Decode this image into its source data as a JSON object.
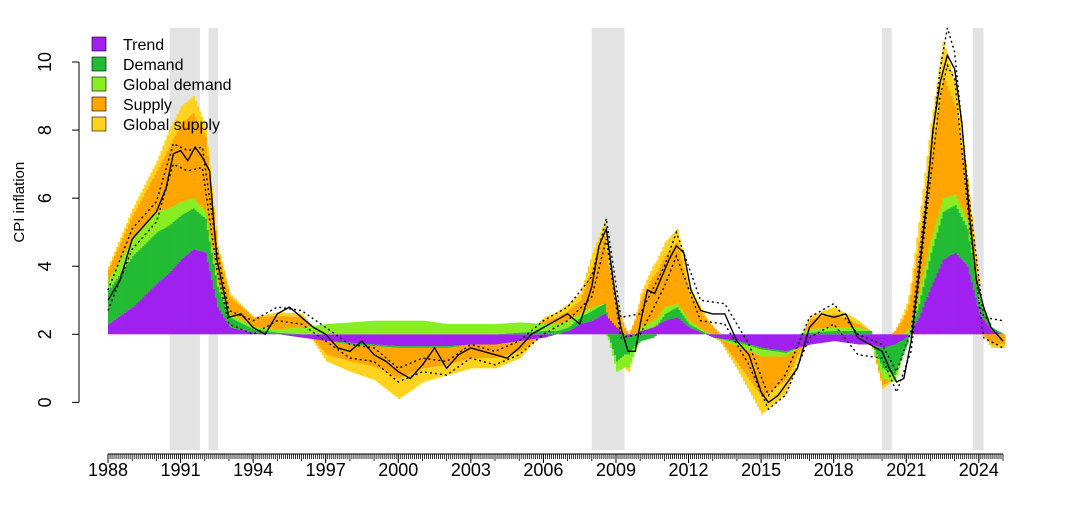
{
  "chart_data": {
    "type": "area",
    "ylabel": "CPI inflation",
    "xlim": [
      1988.0,
      2025.0
    ],
    "ylim": [
      -1.4,
      11.0
    ],
    "baseline": 2,
    "grid": false,
    "legend_position": "top-left",
    "x_ticks": [
      1988,
      1991,
      1994,
      1997,
      2000,
      2003,
      2006,
      2009,
      2012,
      2015,
      2018,
      2021,
      2024
    ],
    "x_tick_labels": [
      "1988",
      "1991",
      "1994",
      "1997",
      "2000",
      "2003",
      "2006",
      "2009",
      "2012",
      "2015",
      "2018",
      "2021",
      "2024"
    ],
    "y_ticks": [
      0,
      2,
      4,
      6,
      8,
      10
    ],
    "y_tick_labels": [
      "0",
      "2",
      "4",
      "6",
      "8",
      "10"
    ],
    "recessions": [
      [
        1990.55,
        1991.8
      ],
      [
        1992.15,
        1992.55
      ],
      [
        2008.0,
        2009.35
      ],
      [
        2020.0,
        2020.4
      ],
      [
        2023.75,
        2024.2
      ]
    ],
    "series": [
      {
        "name": "Trend",
        "color": "#a020f0"
      },
      {
        "name": "Demand",
        "color": "#22bb33"
      },
      {
        "name": "Global demand",
        "color": "#88ee22"
      },
      {
        "name": "Supply",
        "color": "#ffa500"
      },
      {
        "name": "Global supply",
        "color": "#ffd21e"
      }
    ],
    "x": [
      1988.0,
      1989.0,
      1990.0,
      1990.5,
      1991.0,
      1991.5,
      1992.0,
      1992.5,
      1993.0,
      1994.0,
      1995.0,
      1996.0,
      1997.0,
      1998.0,
      1999.0,
      2000.0,
      2001.0,
      2002.0,
      2003.0,
      2004.0,
      2005.0,
      2006.0,
      2007.0,
      2007.5,
      2008.0,
      2008.5,
      2009.0,
      2009.5,
      2010.0,
      2010.5,
      2011.0,
      2011.5,
      2012.0,
      2013.0,
      2014.0,
      2015.0,
      2016.0,
      2017.0,
      2018.0,
      2019.0,
      2019.5,
      2020.0,
      2020.5,
      2021.0,
      2021.5,
      2022.0,
      2022.5,
      2023.0,
      2023.5,
      2024.0,
      2024.5,
      2025.0
    ],
    "components": {
      "Trend": [
        0.3,
        0.8,
        1.5,
        1.8,
        2.2,
        2.5,
        2.4,
        0.8,
        0.2,
        0.05,
        0.0,
        -0.1,
        -0.2,
        -0.25,
        -0.3,
        -0.35,
        -0.35,
        -0.35,
        -0.3,
        -0.3,
        -0.2,
        -0.1,
        0.1,
        0.3,
        0.4,
        0.6,
        0.2,
        -0.1,
        0.1,
        0.2,
        0.4,
        0.5,
        0.2,
        -0.1,
        -0.2,
        -0.4,
        -0.5,
        -0.3,
        -0.2,
        -0.3,
        -0.3,
        -0.4,
        -0.3,
        -0.1,
        0.5,
        1.4,
        2.2,
        2.4,
        2.0,
        0.6,
        0.1,
        0.0
      ],
      "Demand": [
        1.0,
        1.5,
        1.5,
        1.4,
        1.3,
        1.2,
        1.0,
        0.6,
        0.3,
        0.1,
        0.05,
        0.0,
        0.0,
        -0.05,
        -0.05,
        -0.05,
        -0.05,
        -0.05,
        0.0,
        0.0,
        0.05,
        0.1,
        0.1,
        0.2,
        0.3,
        0.3,
        -0.8,
        -0.5,
        -0.2,
        -0.1,
        0.2,
        0.3,
        0.1,
        0.0,
        -0.05,
        -0.05,
        -0.05,
        0.05,
        0.1,
        0.1,
        0.1,
        -0.6,
        -0.9,
        -0.2,
        0.4,
        1.0,
        1.4,
        1.4,
        1.1,
        0.4,
        0.1,
        0.0
      ],
      "Global demand": [
        0.3,
        0.5,
        0.6,
        0.5,
        0.4,
        0.3,
        0.2,
        0.1,
        0.1,
        0.05,
        0.1,
        0.2,
        0.3,
        0.35,
        0.4,
        0.4,
        0.4,
        0.3,
        0.3,
        0.3,
        0.3,
        0.2,
        0.2,
        0.1,
        0.1,
        0.0,
        -0.3,
        -0.4,
        0.1,
        0.2,
        0.2,
        0.1,
        0.1,
        0.0,
        -0.1,
        -0.2,
        -0.1,
        0.1,
        0.1,
        0.1,
        0.0,
        -0.3,
        -0.2,
        0.1,
        0.3,
        0.4,
        0.4,
        0.3,
        0.2,
        0.1,
        0.0,
        0.0
      ],
      "Supply": [
        0.3,
        0.7,
        1.2,
        1.8,
        2.3,
        2.5,
        2.2,
        1.0,
        0.5,
        0.3,
        0.4,
        0.3,
        -0.4,
        -0.5,
        -0.6,
        -0.9,
        -0.6,
        -0.5,
        -0.4,
        -0.4,
        -0.3,
        0.1,
        0.3,
        0.4,
        1.2,
        2.0,
        0.6,
        0.0,
        0.8,
        1.3,
        1.5,
        1.8,
        0.8,
        0.2,
        -0.5,
        -1.2,
        -0.7,
        0.3,
        0.4,
        0.1,
        0.0,
        -0.2,
        0.1,
        0.6,
        1.5,
        2.5,
        3.6,
        2.6,
        1.0,
        0.1,
        -0.3,
        -0.3
      ],
      "Global supply": [
        0.1,
        0.2,
        0.3,
        0.5,
        0.5,
        0.5,
        0.3,
        0.1,
        0.1,
        0.0,
        0.1,
        0.1,
        -0.2,
        -0.3,
        -0.4,
        -0.6,
        -0.4,
        -0.3,
        -0.3,
        -0.3,
        -0.2,
        0.1,
        0.2,
        0.2,
        0.4,
        0.4,
        0.1,
        -0.1,
        0.2,
        0.3,
        0.4,
        0.4,
        0.2,
        0.0,
        -0.2,
        -0.5,
        -0.4,
        0.1,
        0.2,
        0.1,
        0.0,
        -0.1,
        0.0,
        0.2,
        0.6,
        0.9,
        1.0,
        0.6,
        0.3,
        0.0,
        -0.1,
        -0.1
      ]
    },
    "line": {
      "name": "CPI inflation",
      "x": [
        1988.0,
        1988.5,
        1989.0,
        1989.5,
        1990.0,
        1990.4,
        1990.7,
        1991.0,
        1991.3,
        1991.6,
        1991.9,
        1992.2,
        1992.5,
        1992.8,
        1993.0,
        1993.5,
        1994.0,
        1994.5,
        1995.0,
        1995.5,
        1996.0,
        1996.5,
        1997.0,
        1997.5,
        1998.0,
        1998.5,
        1999.0,
        1999.5,
        2000.0,
        2000.5,
        2001.0,
        2001.5,
        2002.0,
        2002.5,
        2003.0,
        2003.5,
        2004.0,
        2004.5,
        2005.0,
        2005.5,
        2006.0,
        2006.5,
        2007.0,
        2007.5,
        2008.0,
        2008.3,
        2008.6,
        2008.9,
        2009.2,
        2009.5,
        2009.8,
        2010.0,
        2010.3,
        2010.6,
        2010.9,
        2011.2,
        2011.5,
        2011.8,
        2012.1,
        2012.5,
        2013.0,
        2013.5,
        2014.0,
        2014.5,
        2015.0,
        2015.3,
        2015.7,
        2016.0,
        2016.5,
        2017.0,
        2017.5,
        2018.0,
        2018.5,
        2019.0,
        2019.5,
        2020.0,
        2020.3,
        2020.6,
        2020.9,
        2021.2,
        2021.5,
        2021.8,
        2022.1,
        2022.4,
        2022.7,
        2023.0,
        2023.3,
        2023.6,
        2023.9,
        2024.2,
        2024.5,
        2025.0
      ],
      "y": [
        3.0,
        3.6,
        4.8,
        5.2,
        5.6,
        6.3,
        7.3,
        7.4,
        7.1,
        7.5,
        7.2,
        6.8,
        4.2,
        3.2,
        2.5,
        2.6,
        2.2,
        2.0,
        2.6,
        2.8,
        2.5,
        2.2,
        2.0,
        1.6,
        1.5,
        1.8,
        1.4,
        1.2,
        0.9,
        0.7,
        1.1,
        1.6,
        1.0,
        1.4,
        1.6,
        1.5,
        1.4,
        1.3,
        1.6,
        2.0,
        2.2,
        2.4,
        2.6,
        2.3,
        3.4,
        4.6,
        5.1,
        3.5,
        2.2,
        1.5,
        1.5,
        2.3,
        3.3,
        3.2,
        3.7,
        4.2,
        4.6,
        4.4,
        3.3,
        2.7,
        2.6,
        2.6,
        1.8,
        1.4,
        0.3,
        0.0,
        0.2,
        0.5,
        1.0,
        2.2,
        2.6,
        2.5,
        2.6,
        1.9,
        1.7,
        1.5,
        1.0,
        0.6,
        0.7,
        1.8,
        3.6,
        5.6,
        8.0,
        9.4,
        10.2,
        9.8,
        8.2,
        5.6,
        3.6,
        2.8,
        2.2,
        1.8
      ]
    },
    "band": {
      "x": [
        1988.0,
        1989.0,
        1990.0,
        1990.7,
        1991.3,
        1991.9,
        1992.5,
        1993.0,
        1994.0,
        1995.0,
        1996.0,
        1997.0,
        1998.0,
        1999.0,
        2000.0,
        2001.0,
        2002.0,
        2003.0,
        2004.0,
        2005.0,
        2006.0,
        2007.0,
        2008.0,
        2008.6,
        2009.2,
        2010.0,
        2011.0,
        2011.5,
        2012.5,
        2013.5,
        2014.5,
        2015.3,
        2016.0,
        2017.0,
        2018.0,
        2019.0,
        2020.0,
        2020.6,
        2021.2,
        2021.8,
        2022.4,
        2022.7,
        2023.0,
        2023.6,
        2024.2,
        2025.0
      ],
      "lower": [
        2.7,
        4.5,
        5.3,
        7.0,
        6.8,
        6.9,
        3.9,
        2.3,
        2.0,
        2.4,
        2.3,
        1.8,
        1.3,
        1.2,
        0.6,
        0.9,
        0.8,
        1.3,
        1.1,
        1.4,
        2.0,
        2.4,
        3.1,
        4.8,
        1.9,
        2.0,
        3.4,
        4.3,
        2.4,
        2.3,
        1.1,
        -0.2,
        0.2,
        1.9,
        2.3,
        1.4,
        1.3,
        0.3,
        1.5,
        5.3,
        9.0,
        9.9,
        9.5,
        5.3,
        1.9,
        1.6
      ],
      "upper": [
        3.3,
        5.1,
        5.9,
        7.6,
        7.4,
        7.5,
        4.5,
        2.7,
        2.4,
        2.8,
        2.7,
        2.2,
        1.7,
        1.6,
        1.0,
        1.3,
        1.2,
        1.7,
        1.5,
        1.8,
        2.4,
        2.8,
        3.7,
        5.4,
        2.5,
        2.6,
        4.0,
        5.0,
        3.0,
        2.9,
        1.7,
        0.2,
        0.8,
        2.5,
        2.9,
        2.0,
        1.7,
        0.9,
        2.1,
        5.9,
        9.8,
        11.0,
        10.3,
        6.0,
        2.5,
        2.4
      ]
    }
  }
}
